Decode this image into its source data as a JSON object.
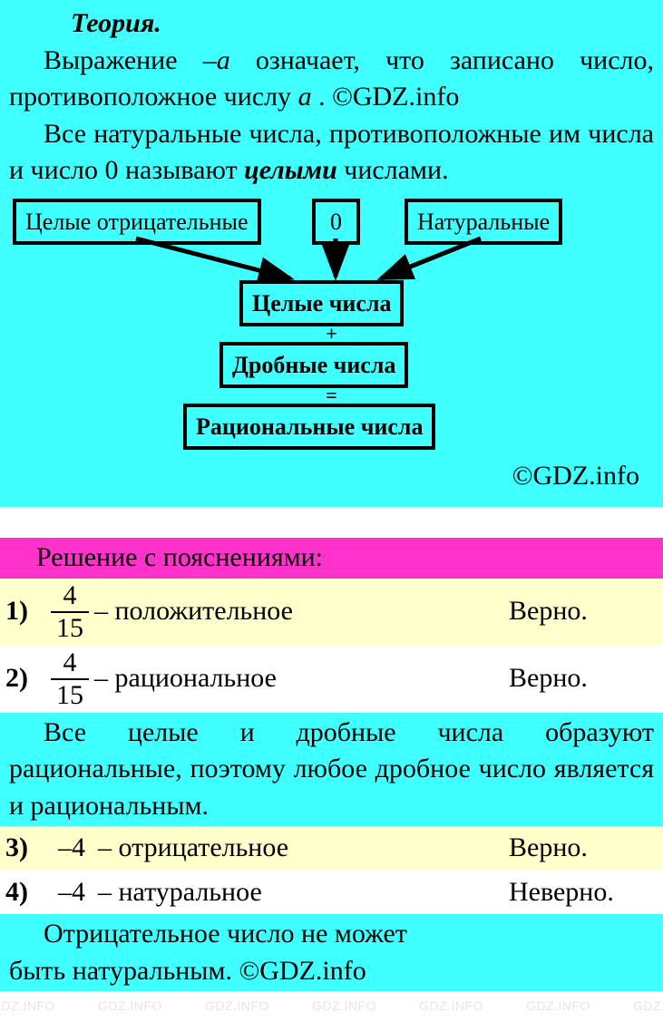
{
  "watermark_text": "GDZ.INFO",
  "watermark_color": "#888888",
  "watermark_fontsize": 14,
  "colors": {
    "cyan": "#40ffff",
    "pink": "#ff33cc",
    "yellow": "#ffffcc",
    "white": "#ffffff",
    "black": "#000000"
  },
  "theory": {
    "title": "Теория.",
    "para1_a": "Выражение ",
    "para1_var": "–a",
    "para1_b": " означает, что записа­но число, противоположное числу ",
    "para1_var2": "a",
    "para1_c": " . ©GDZ.info",
    "para2_a": "Все натуральные числа, противопо­ложные им числа и число 0 называют ",
    "para2_emph": "целыми",
    "para2_b": " числами."
  },
  "diagram": {
    "box_neg": "Целые отрицательные",
    "box_zero": "0",
    "box_nat": "Натуральные",
    "box_int": "Целые числа",
    "box_frac": "Дробные числа",
    "box_rat": "Рациональные числа",
    "plus": "+",
    "eq": "=",
    "box_border_color": "#000000",
    "box_border_width": 4,
    "arrow_color": "#000000"
  },
  "credit": "©GDZ.info",
  "pink_header": "Решение с пояснениями:",
  "items": [
    {
      "n": "1)",
      "frac_top": "4",
      "frac_bot": "15",
      "desc": "– положительное",
      "verdict": "Верно.",
      "bg": "yellow"
    },
    {
      "n": "2)",
      "frac_top": "4",
      "frac_bot": "15",
      "desc": "– рациональное",
      "verdict": "Верно.",
      "bg": "white"
    }
  ],
  "explain1": "Все целые и дробные числа образуют рациональные, поэтому любое дробное число является и рациональным.",
  "items2": [
    {
      "n": "3)",
      "val": "–4",
      "desc": "– отрицательное",
      "verdict": "Верно.",
      "bg": "yellow"
    },
    {
      "n": "4)",
      "val": "–4",
      "desc": "– натуральное",
      "verdict": "Неверно.",
      "bg": "white"
    }
  ],
  "explain2_a": "Отрицательное число не может",
  "explain2_b": "быть натуральным. ©GDZ.info"
}
